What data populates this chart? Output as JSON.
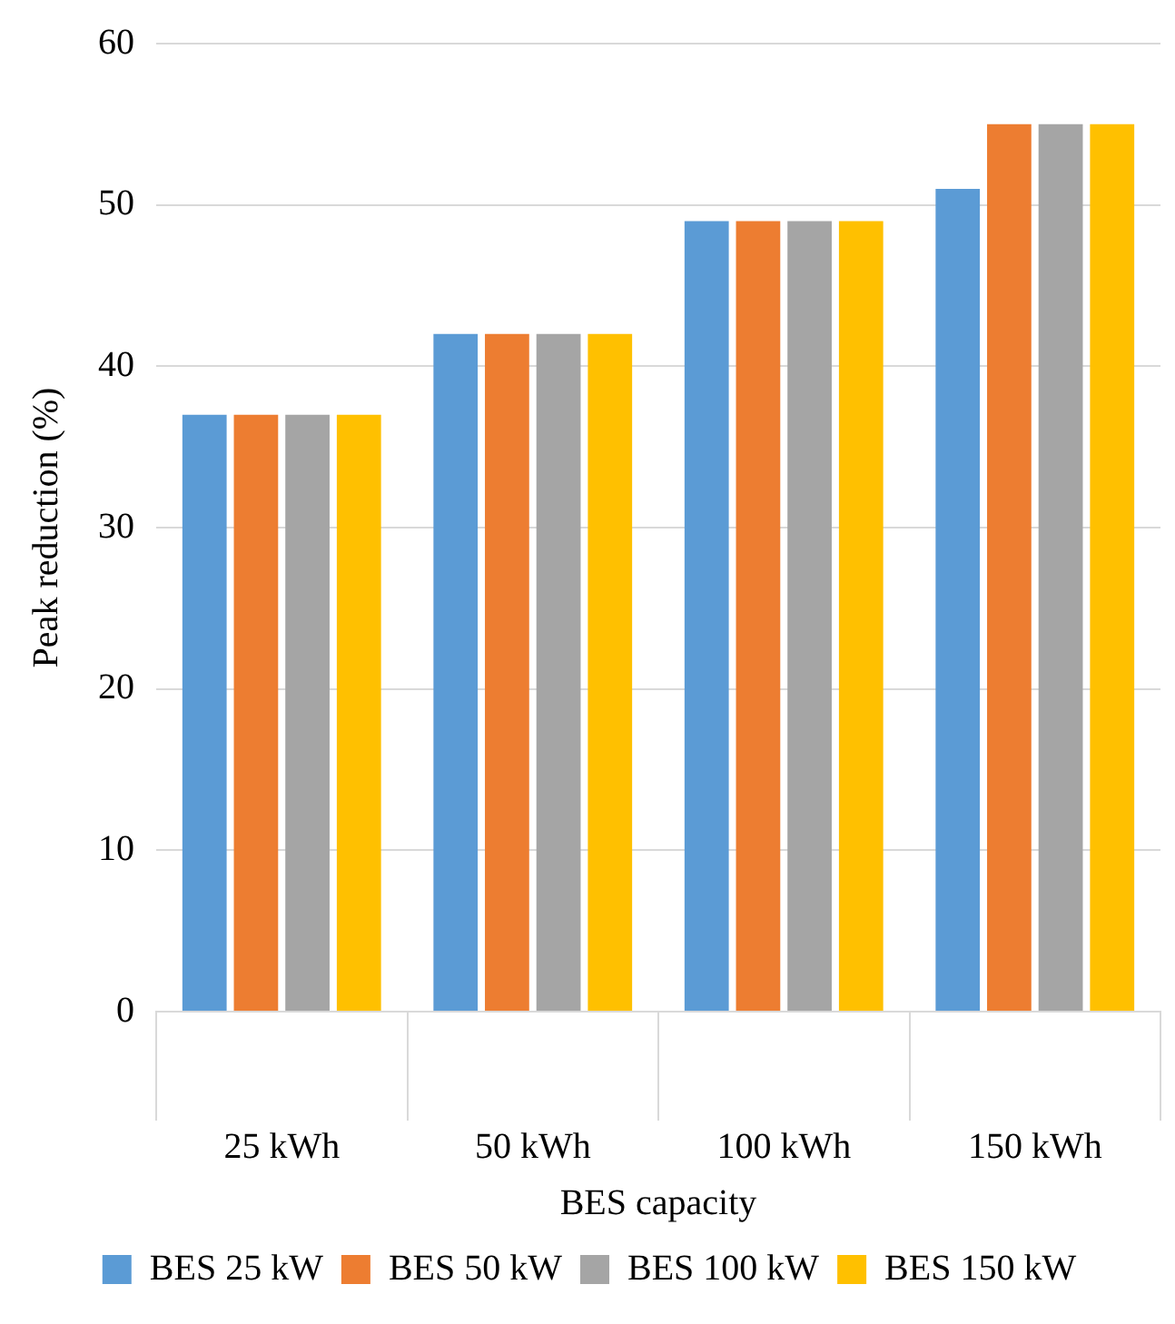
{
  "chart_data": {
    "type": "bar",
    "xlabel": "BES capacity",
    "ylabel": "Peak reduction (%)",
    "categories": [
      "25 kWh",
      "50 kWh",
      "100 kWh",
      "150 kWh"
    ],
    "series": [
      {
        "name": "BES 25 kW",
        "color": "#5b9bd5",
        "values": [
          37,
          42,
          49,
          51
        ]
      },
      {
        "name": "BES 50 kW",
        "color": "#ed7d31",
        "values": [
          37,
          42,
          49,
          55
        ]
      },
      {
        "name": "BES 100 kW",
        "color": "#a5a5a5",
        "values": [
          37,
          42,
          49,
          55
        ]
      },
      {
        "name": "BES 150 kW",
        "color": "#ffc000",
        "values": [
          37,
          42,
          49,
          55
        ]
      }
    ],
    "ylim": [
      0,
      60
    ],
    "yticks": [
      0,
      10,
      20,
      30,
      40,
      50,
      60
    ],
    "grid": "y",
    "legend": "bottom"
  }
}
